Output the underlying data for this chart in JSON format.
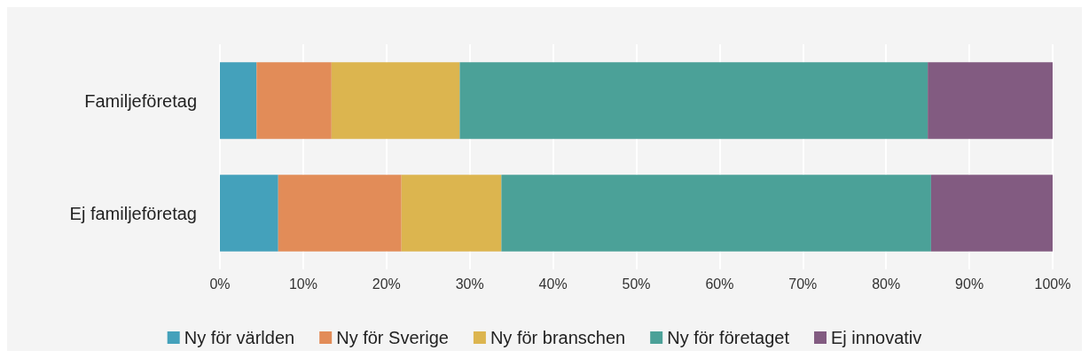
{
  "chart_data": {
    "type": "bar",
    "orientation": "horizontal",
    "stacked": true,
    "categories": [
      "Familjeföretag",
      "Ej familjeföretag"
    ],
    "series": [
      {
        "name": "Ny för världen",
        "color": "#44a1bb",
        "values": [
          4.4,
          7.0
        ]
      },
      {
        "name": "Ny för Sverige",
        "color": "#e28c58",
        "values": [
          9.0,
          14.8
        ]
      },
      {
        "name": "Ny för branschen",
        "color": "#dcb54f",
        "values": [
          15.4,
          12.0
        ]
      },
      {
        "name": "Ny för företaget",
        "color": "#4ba198",
        "values": [
          56.2,
          51.6
        ]
      },
      {
        "name": "Ej innovativ",
        "color": "#825b81",
        "values": [
          15.0,
          14.6
        ]
      }
    ],
    "xlim": [
      0,
      100
    ],
    "xticks": [
      {
        "value": 0,
        "label": "0%"
      },
      {
        "value": 10,
        "label": "10%"
      },
      {
        "value": 20,
        "label": "20%"
      },
      {
        "value": 30,
        "label": "30%"
      },
      {
        "value": 40,
        "label": "40%"
      },
      {
        "value": 50,
        "label": "50%"
      },
      {
        "value": 60,
        "label": "60%"
      },
      {
        "value": 70,
        "label": "70%"
      },
      {
        "value": 80,
        "label": "80%"
      },
      {
        "value": 90,
        "label": "90%"
      },
      {
        "value": 100,
        "label": "100%"
      }
    ],
    "grid": "x",
    "legend": "bottom"
  }
}
